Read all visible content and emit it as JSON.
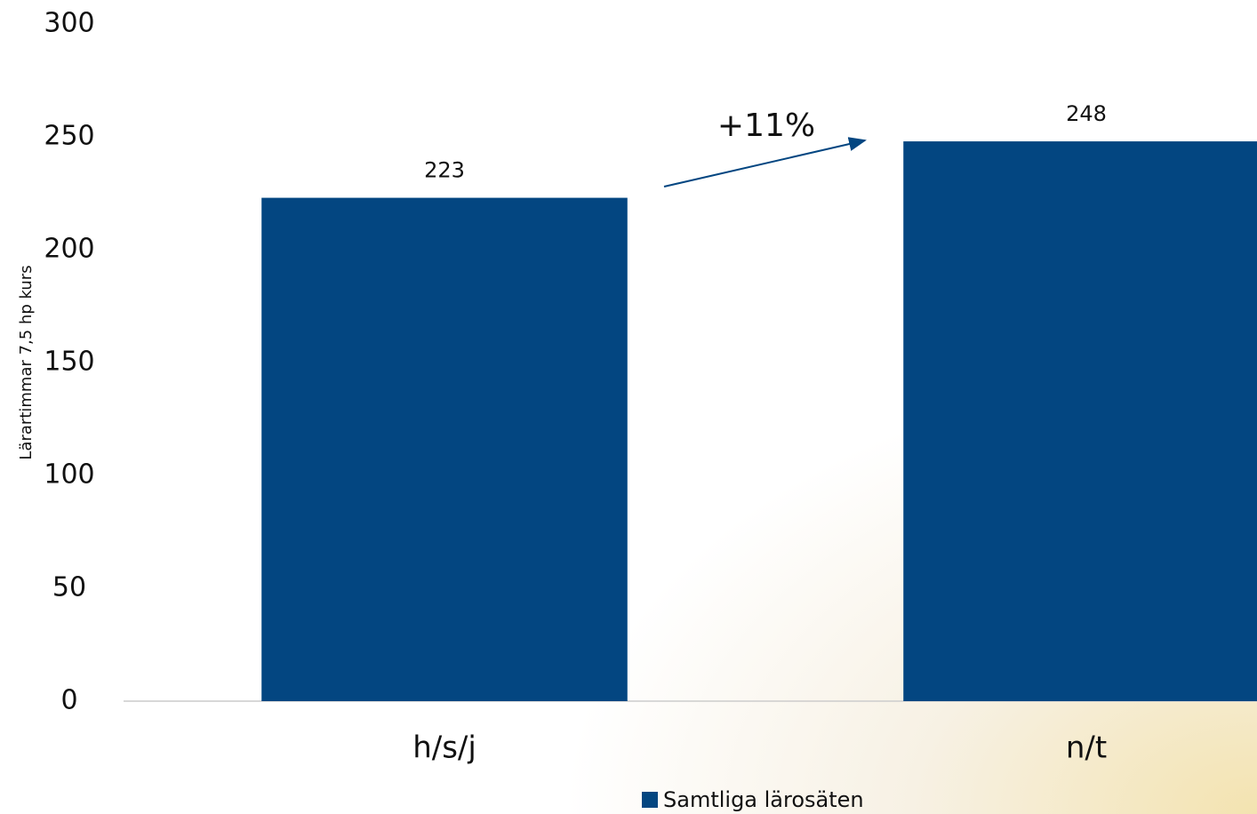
{
  "chart_data": {
    "type": "bar",
    "y_label": "Lärartimmar 7,5 hp kurs",
    "categories": [
      "h/s/j",
      "n/t"
    ],
    "series": [
      {
        "name": "Samtliga lärosäten",
        "color": "#034681",
        "values": [
          223,
          248
        ]
      }
    ],
    "ylim": [
      0,
      300
    ],
    "yticks": [
      0,
      50,
      100,
      150,
      200,
      250,
      300
    ],
    "grid": false,
    "annotation": "+11%",
    "legend": "bottom"
  }
}
